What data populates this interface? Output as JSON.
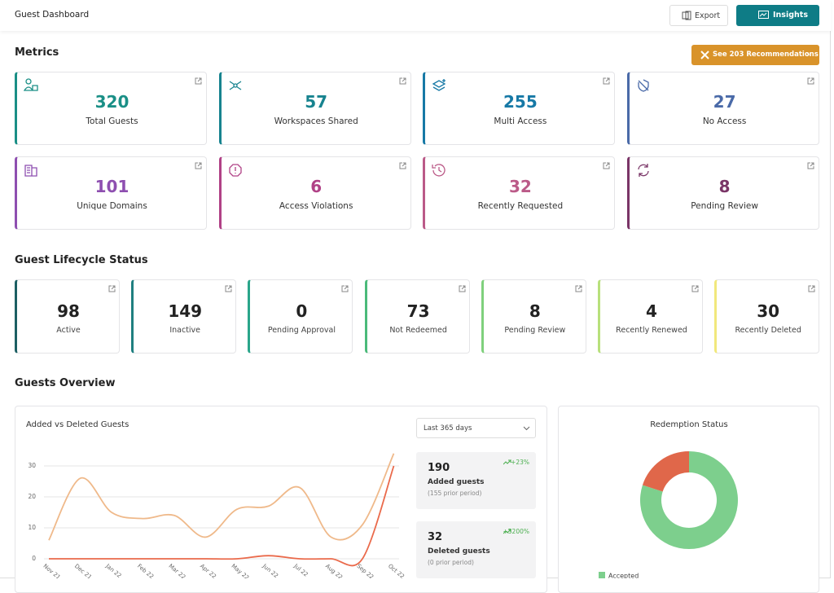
{
  "header": {
    "title": "Guest Dashboard",
    "export": "Export",
    "insights": "Insights"
  },
  "metrics": {
    "title": "Metrics",
    "recommendations": "See 203 Recommendations",
    "cards": [
      {
        "value": 320,
        "label": "Total Guests",
        "color": "#1a8f86"
      },
      {
        "value": 57,
        "label": "Workspaces Shared",
        "color": "#17838f"
      },
      {
        "value": 255,
        "label": "Multi Access",
        "color": "#1779a6"
      },
      {
        "value": 27,
        "label": "No Access",
        "color": "#4a6aa8"
      },
      {
        "value": 101,
        "label": "Unique Domains",
        "color": "#8e4fb0"
      },
      {
        "value": 6,
        "label": "Access Violations",
        "color": "#b04186"
      },
      {
        "value": 32,
        "label": "Recently Requested",
        "color": "#bb5a88"
      },
      {
        "value": 8,
        "label": "Pending Review",
        "color": "#7a3567"
      }
    ]
  },
  "lifecycle": {
    "title": "Guest Lifecycle Status",
    "cards": [
      {
        "value": 98,
        "label": "Active",
        "color": "#1c5f63"
      },
      {
        "value": 149,
        "label": "Inactive",
        "color": "#1f7f80"
      },
      {
        "value": 0,
        "label": "Pending Approval",
        "color": "#2aa58a"
      },
      {
        "value": 73,
        "label": "Not Redeemed",
        "color": "#4bba7a"
      },
      {
        "value": 8,
        "label": "Pending Review",
        "color": "#7fd07c"
      },
      {
        "value": 4,
        "label": "Recently Renewed",
        "color": "#b8e07c"
      },
      {
        "value": 30,
        "label": "Recently Deleted",
        "color": "#f1e87c"
      }
    ]
  },
  "overview": {
    "title": "Guests Overview",
    "range": "Last 365 days",
    "stats": [
      {
        "value": 190,
        "label": "Added guests",
        "prior": "(155 prior period)",
        "change": "+23%"
      },
      {
        "value": 32,
        "label": "Deleted guests",
        "prior": "(0 prior period)",
        "change": "+3200%"
      }
    ]
  },
  "chart_data": [
    {
      "type": "line",
      "title": "Added vs Deleted Guests",
      "categories": [
        "Nov 21",
        "Dec 21",
        "Jan 22",
        "Feb 22",
        "Mar 22",
        "Apr 22",
        "May 22",
        "Jun 22",
        "Jul 22",
        "Aug 22",
        "Sep 22",
        "Oct 22"
      ],
      "series": [
        {
          "color": "#efb98a",
          "values": [
            6,
            26,
            15,
            13,
            14,
            7,
            16,
            17,
            23,
            7,
            11,
            34
          ]
        },
        {
          "color": "#ea6a4b",
          "values": [
            0,
            0,
            0,
            0,
            0,
            0,
            0,
            1,
            0,
            0,
            0,
            30
          ]
        }
      ],
      "ylim": [
        0,
        35
      ],
      "yticks": [
        0,
        10,
        20,
        30
      ],
      "grid": true
    },
    {
      "type": "pie",
      "title": "Redemption Status",
      "donut": true,
      "slices": [
        {
          "name": "Accepted",
          "value": 80,
          "color": "#7dcf8d"
        },
        {
          "value": 20,
          "color": "#e0674a"
        }
      ]
    }
  ]
}
